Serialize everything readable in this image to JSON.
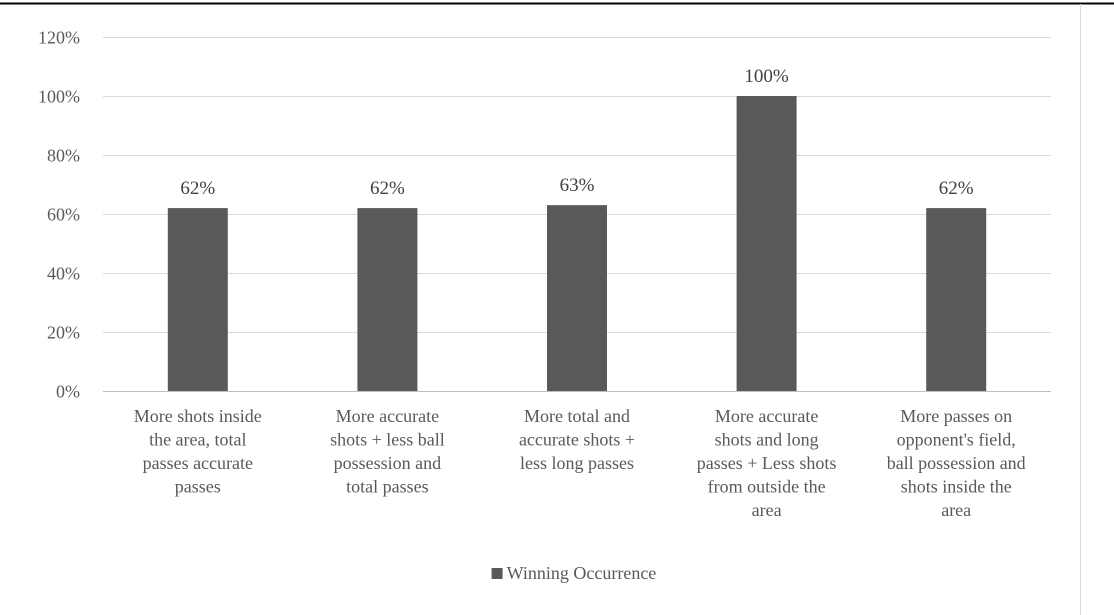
{
  "chart_data": {
    "type": "bar",
    "title": "",
    "xlabel": "",
    "ylabel": "",
    "ylim": [
      0,
      120
    ],
    "y_tick_step": 20,
    "y_tick_labels": [
      "0%",
      "20%",
      "40%",
      "60%",
      "80%",
      "100%",
      "120%"
    ],
    "grid": true,
    "legend_position": "bottom",
    "bar_color": "#595959",
    "categories": [
      [
        "More shots inside",
        "the area, total",
        "passes accurate",
        "passes"
      ],
      [
        "More accurate",
        "shots + less ball",
        "possession and",
        "total passes"
      ],
      [
        "More total and",
        "accurate shots +",
        "less long passes"
      ],
      [
        "More accurate",
        "shots and long",
        "passes + Less shots",
        "from outside the",
        "area"
      ],
      [
        "More passes on",
        "opponent's field,",
        "ball possession and",
        "shots inside the",
        "area"
      ]
    ],
    "series": [
      {
        "name": "Winning Occurrence",
        "values": [
          62,
          62,
          63,
          100,
          62
        ],
        "data_labels": [
          "62%",
          "62%",
          "63%",
          "100%",
          "62%"
        ]
      }
    ]
  }
}
